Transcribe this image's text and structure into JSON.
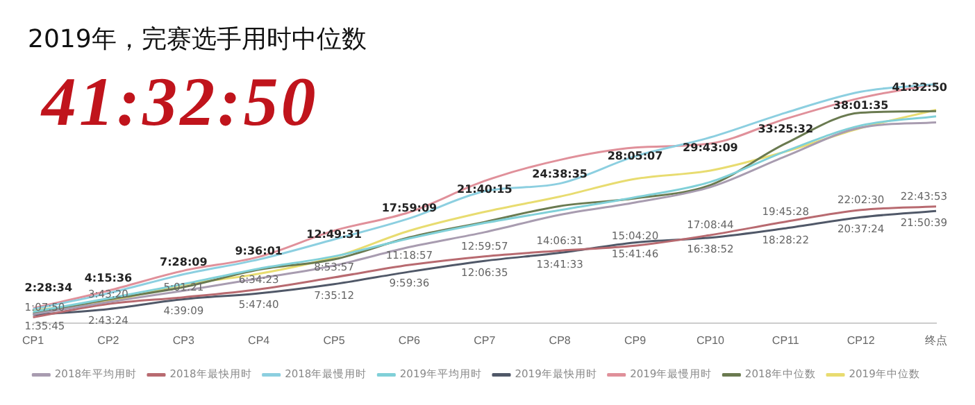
{
  "chart_data": {
    "type": "line",
    "title": "2019年，完赛选手用时中位数",
    "annotations": [
      "41:32:50"
    ],
    "categories": [
      "CP1",
      "CP2",
      "CP3",
      "CP4",
      "CP5",
      "CP6",
      "CP7",
      "CP8",
      "CP9",
      "CP10",
      "CP11",
      "CP12",
      "终点"
    ],
    "series": [
      {
        "name": "2018年平均用时",
        "color": "#a89cb0",
        "values": [
          1.7,
          4.1,
          6.3,
          8.7,
          11.2,
          14.8,
          17.7,
          21.1,
          23.5,
          26.5,
          32.5,
          38.1,
          39.1
        ]
      },
      {
        "name": "2018年最快用时",
        "color": "#b86a70",
        "values": [
          1.130556,
          3.722222,
          5.0225,
          6.573056,
          8.899167,
          11.315833,
          12.999167,
          14.108611,
          15.072222,
          17.145556,
          19.757778,
          22.041667,
          22.731389
        ],
        "value_labels": [
          "1:07:50",
          "3:43:20",
          "5:01:21",
          "6:34:23",
          "8:53:57",
          "11:18:57",
          "12:59:57",
          "14:06:31",
          "15:04:20",
          "17:08:44",
          "19:45:28",
          "22:02:30",
          "22:43:53"
        ]
      },
      {
        "name": "2018年最慢用时",
        "color": "#8ccfe0",
        "values": [
          2.7,
          5.8,
          9.5,
          12.4,
          16.3,
          20.4,
          25.7,
          27.2,
          32.5,
          36.2,
          41,
          45.1,
          46.6
        ]
      },
      {
        "name": "2019年平均用时",
        "color": "#80d0d8",
        "values": [
          2.2,
          4.8,
          7.6,
          10.6,
          13,
          16.5,
          19.5,
          22,
          24.5,
          27.5,
          33.5,
          38.5,
          40.3
        ]
      },
      {
        "name": "2019年最快用时",
        "color": "#505868",
        "values": [
          1.595833,
          2.723333,
          4.6525,
          5.794444,
          7.586667,
          9.993333,
          12.109722,
          13.6925,
          15.696111,
          16.647778,
          18.472778,
          20.623333,
          21.844167
        ],
        "value_labels": [
          "1:35:45",
          "2:43:24",
          "4:39:09",
          "5:47:40",
          "7:35:12",
          "9:59:36",
          "12:06:35",
          "13:41:33",
          "15:41:46",
          "16:38:52",
          "18:28:22",
          "20:37:24",
          "21:50:39"
        ]
      },
      {
        "name": "2019年最慢用时",
        "color": "#e0909a",
        "values": [
          2.9,
          6.3,
          10.2,
          12.9,
          18,
          21.6,
          27.7,
          31.8,
          34.2,
          35,
          39.8,
          43.9,
          46.6
        ]
      },
      {
        "name": "2018年中位数",
        "color": "#6a7a50",
        "values": [
          1.9,
          4.6,
          7,
          10.4,
          12.4,
          16.7,
          19.7,
          22.8,
          24.3,
          26.9,
          35,
          41,
          41.3
        ]
      },
      {
        "name": "2019年中位数",
        "color": "#e8dc70",
        "values": [
          2.476111,
          4.26,
          7.469167,
          9.600278,
          12.825278,
          17.985833,
          21.670833,
          24.643056,
          28.085278,
          29.719167,
          33.425556,
          38.026389,
          41.547222
        ],
        "value_labels": [
          "2:28:34",
          "4:15:36",
          "7:28:09",
          "9:36:01",
          "12:49:31",
          "17:59:09",
          "21:40:15",
          "24:38:35",
          "28:05:07",
          "29:43:09",
          "33:25:32",
          "38:01:35",
          "41:32:50"
        ]
      }
    ],
    "grid": false,
    "legend": "bottom",
    "tick_labels": "x",
    "marker": "none",
    "line_style": "solid"
  }
}
